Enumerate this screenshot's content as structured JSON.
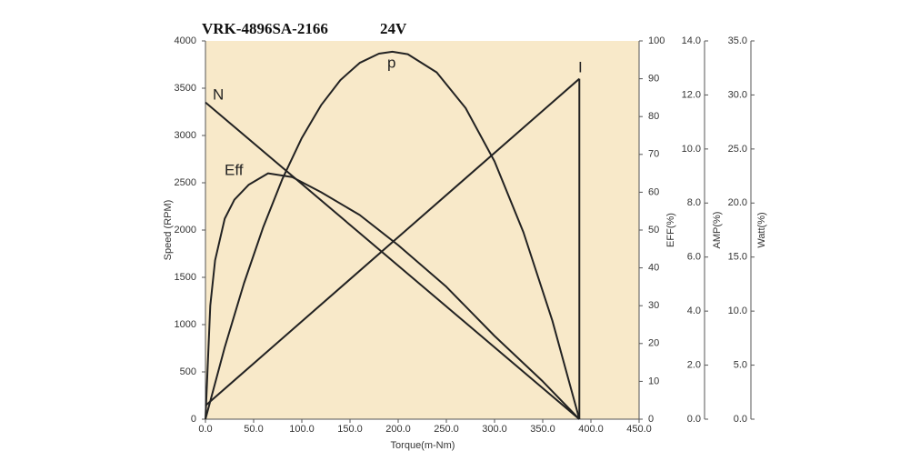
{
  "chart_data": {
    "type": "line",
    "title": "VRK-4896SA-2166",
    "subtitle": "24V",
    "x_label": "Torque(m-Nm)",
    "y_label": "Speed (RPM)",
    "y2_label": "EFF(%)",
    "y3_label": "AMP(%)",
    "y4_label": "Watt(%)",
    "xlim": [
      0,
      450
    ],
    "xticks": [
      {
        "value": 0,
        "label": "0.0"
      },
      {
        "value": 50,
        "label": "50.0"
      },
      {
        "value": 100,
        "label": "100.0"
      },
      {
        "value": 150,
        "label": "150.0"
      },
      {
        "value": 200,
        "label": "200.0"
      },
      {
        "value": 250,
        "label": "250.0"
      },
      {
        "value": 300,
        "label": "300.0"
      },
      {
        "value": 350,
        "label": "350.0"
      },
      {
        "value": 400,
        "label": "400.0"
      },
      {
        "value": 450,
        "label": "450.0"
      }
    ],
    "ylim": [
      0,
      4000
    ],
    "yticks": [
      0,
      500,
      1000,
      1500,
      2000,
      2500,
      3000,
      3500,
      4000
    ],
    "y2lim": [
      0,
      100
    ],
    "y2ticks": [
      0,
      10,
      20,
      30,
      40,
      50,
      60,
      70,
      80,
      90,
      100
    ],
    "y3lim": [
      0,
      14
    ],
    "y3ticks": [
      {
        "value": 0,
        "label": "0.0"
      },
      {
        "value": 2,
        "label": "2.0"
      },
      {
        "value": 4,
        "label": "4.0"
      },
      {
        "value": 6,
        "label": "6.0"
      },
      {
        "value": 8,
        "label": "8.0"
      },
      {
        "value": 10,
        "label": "10.0"
      },
      {
        "value": 12,
        "label": "12.0"
      },
      {
        "value": 14,
        "label": "14.0"
      }
    ],
    "y4lim": [
      0,
      35
    ],
    "y4ticks": [
      {
        "value": 0,
        "label": "0.0"
      },
      {
        "value": 5,
        "label": "5.0"
      },
      {
        "value": 10,
        "label": "10.0"
      },
      {
        "value": 15,
        "label": "15.0"
      },
      {
        "value": 20,
        "label": "20.0"
      },
      {
        "value": 25,
        "label": "25.0"
      },
      {
        "value": 30,
        "label": "30.0"
      },
      {
        "value": 35,
        "label": "35.0"
      }
    ],
    "series": [
      {
        "name": "N",
        "color": "#222222",
        "axis": "y",
        "x": [
          0,
          388
        ],
        "values": [
          3350,
          0
        ]
      },
      {
        "name": "Eff",
        "color": "#222222",
        "axis": "y2",
        "x": [
          0,
          5,
          10,
          20,
          30,
          45,
          65,
          90,
          120,
          160,
          200,
          250,
          300,
          350,
          388
        ],
        "values": [
          0,
          30,
          42,
          53,
          58,
          62,
          65,
          64,
          60,
          54,
          46,
          35,
          22,
          10,
          0
        ]
      },
      {
        "name": "I",
        "color": "#222222",
        "axis": "y3",
        "x": [
          0,
          388
        ],
        "values": [
          0.5,
          12.6
        ]
      },
      {
        "name": "p",
        "color": "#222222",
        "axis": "y4",
        "x": [
          0,
          20,
          40,
          60,
          80,
          100,
          120,
          140,
          160,
          180,
          194,
          210,
          240,
          270,
          300,
          330,
          360,
          388
        ],
        "values": [
          0,
          6.65,
          12.58,
          17.78,
          22.26,
          26.02,
          29.05,
          31.37,
          32.96,
          33.82,
          34,
          33.77,
          32.09,
          28.78,
          23.85,
          17.29,
          9.11,
          0
        ]
      }
    ]
  }
}
